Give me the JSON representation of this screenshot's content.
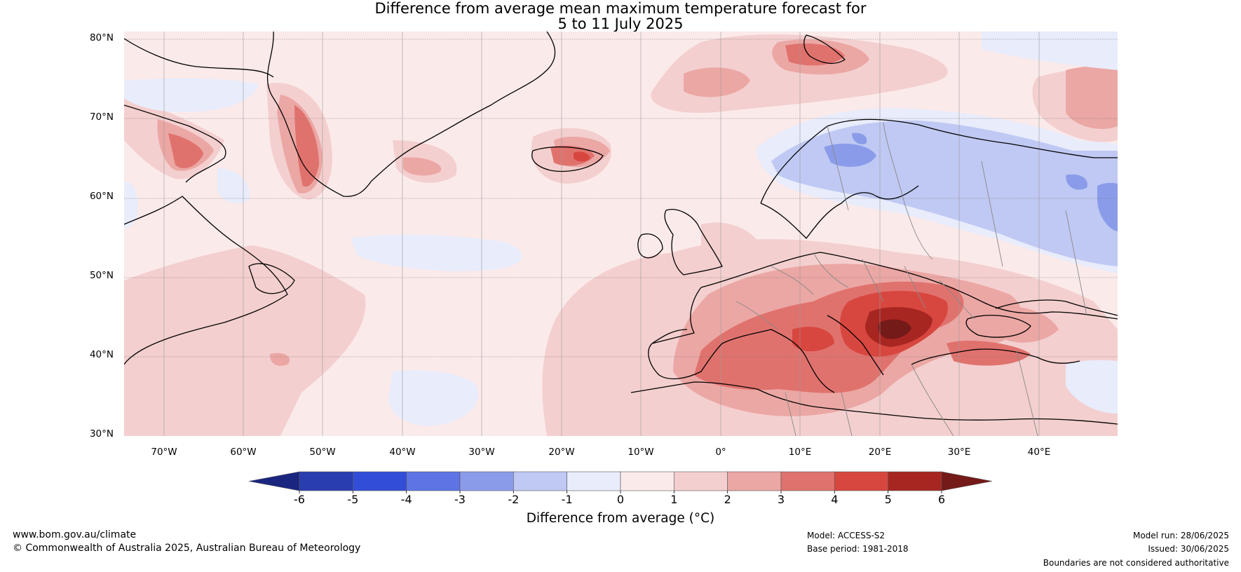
{
  "title_line1": "Difference from average mean maximum temperature forecast for",
  "title_line2": "5 to 11 July 2025",
  "map": {
    "region": "North Atlantic and Europe",
    "lon_range": [
      -75,
      50
    ],
    "lat_range": [
      30,
      81
    ],
    "lat_labels": [
      "30°N",
      "40°N",
      "50°N",
      "60°N",
      "70°N",
      "80°N"
    ],
    "lon_labels": [
      "70°W",
      "60°W",
      "50°W",
      "40°W",
      "30°W",
      "20°W",
      "10°W",
      "0°",
      "10°E",
      "20°E",
      "30°E",
      "40°E"
    ],
    "anomaly_regions": [
      {
        "area": "Balkans / Hungary",
        "anomaly_range": "5 to 6+"
      },
      {
        "area": "Italy / Mediterranean",
        "anomaly_range": "3 to 5"
      },
      {
        "area": "Iberia / France / Central Europe",
        "anomaly_range": "1 to 3"
      },
      {
        "area": "Turkey",
        "anomaly_range": "3 to 4"
      },
      {
        "area": "Iceland",
        "anomaly_range": "2 to 4"
      },
      {
        "area": "Greenland west coast",
        "anomaly_range": "2 to 4"
      },
      {
        "area": "Svalbard",
        "anomaly_range": "2 to 4"
      },
      {
        "area": "Scandinavia / Finland / Western Russia",
        "anomaly_range": "-3 to -1"
      },
      {
        "area": "Central North Atlantic patches",
        "anomaly_range": "-1 to 0"
      }
    ]
  },
  "colorbar": {
    "ticks": [
      "-6",
      "-5",
      "-4",
      "-3",
      "-2",
      "-1",
      "0",
      "1",
      "2",
      "3",
      "4",
      "5",
      "6"
    ],
    "colors": [
      "#2a3db0",
      "#324ed8",
      "#5e74e4",
      "#8a9ce9",
      "#c0c9f3",
      "#e8ecfb",
      "#fbeaea",
      "#f4cfcf",
      "#eba7a4",
      "#e0726e",
      "#d8473f",
      "#a82622"
    ],
    "extend_low_color": "#1a2580",
    "extend_high_color": "#741a18",
    "label": "Difference from average (°C)"
  },
  "footer": {
    "url": "www.bom.gov.au/climate",
    "copyright": "© Commonwealth of Australia 2025, Australian Bureau of Meteorology",
    "model": "Model: ACCESS-S2",
    "base_period": "Base period: 1981-2018",
    "model_run": "Model run: 28/06/2025",
    "issued": "Issued: 30/06/2025",
    "disclaimer": "Boundaries are not considered authoritative"
  }
}
